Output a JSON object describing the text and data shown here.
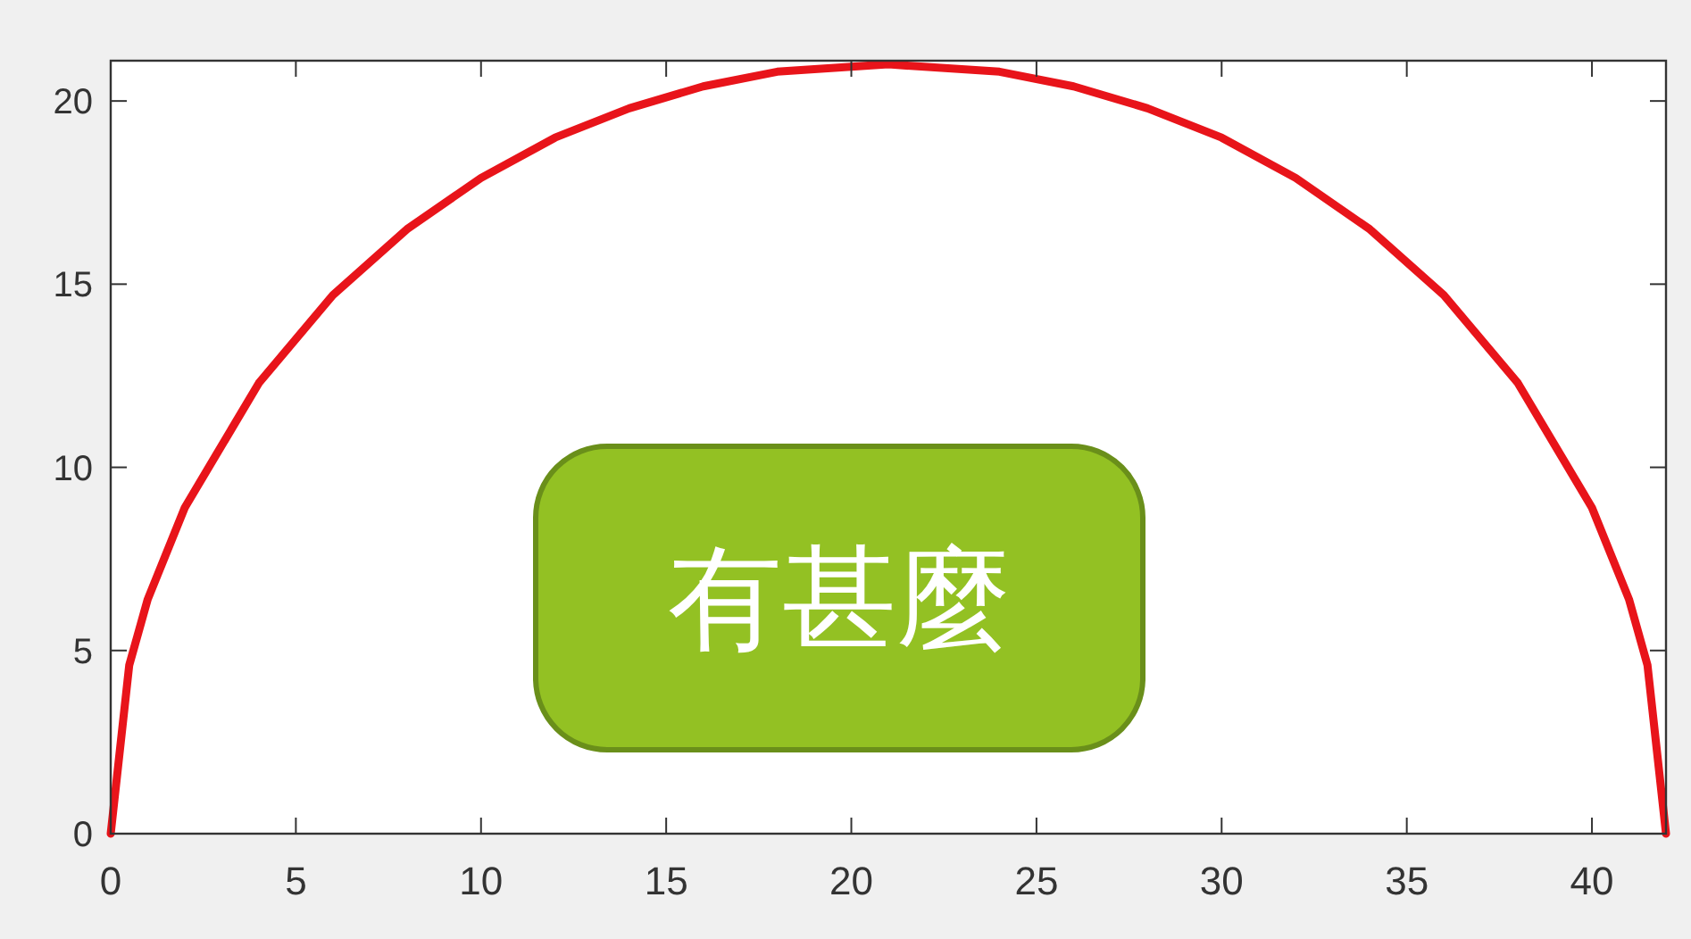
{
  "chart_data": {
    "type": "line",
    "x": [
      0,
      0.5,
      1,
      2,
      4,
      6,
      8,
      10,
      12,
      14,
      16,
      18,
      21,
      24,
      26,
      28,
      30,
      32,
      34,
      36,
      38,
      40,
      41,
      41.5,
      42
    ],
    "series": [
      {
        "color": "#e8141a",
        "values": [
          0,
          4.6,
          6.4,
          8.9,
          12.3,
          14.7,
          16.5,
          17.9,
          19.0,
          19.8,
          20.4,
          20.8,
          21,
          20.8,
          20.4,
          19.8,
          19.0,
          17.9,
          16.5,
          14.7,
          12.3,
          8.9,
          6.4,
          4.6,
          0
        ]
      }
    ],
    "xlim": [
      0,
      42
    ],
    "xticks": [
      0,
      5,
      10,
      15,
      20,
      25,
      30,
      35,
      40
    ],
    "ylim": [
      0,
      21.1
    ],
    "yticks": [
      0,
      5,
      10,
      15,
      20
    ],
    "grid": false,
    "marker": "none",
    "line_style": "solid",
    "annotations": [
      "有甚麼"
    ]
  }
}
